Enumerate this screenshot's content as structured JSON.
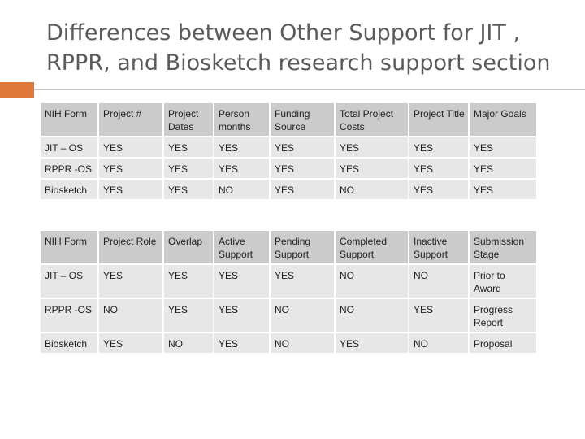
{
  "title_line1": "Differences between Other Support for JIT ,",
  "title_line2": "RPPR, and Biosketch research support section",
  "accent_color": "#e0783c",
  "table1": {
    "header": [
      "NIH Form",
      "Project #",
      "Project Dates",
      "Person months",
      "Funding Source",
      "Total Project Costs",
      "Project Title",
      "Major Goals"
    ],
    "rows": [
      [
        "JIT – OS",
        "YES",
        "YES",
        "YES",
        "YES",
        "YES",
        "YES",
        "YES"
      ],
      [
        "RPPR -OS",
        "YES",
        "YES",
        "YES",
        "YES",
        "YES",
        "YES",
        "YES"
      ],
      [
        "Biosketch",
        "YES",
        "YES",
        "NO",
        "YES",
        "NO",
        "YES",
        "YES"
      ]
    ]
  },
  "table2": {
    "header": [
      "NIH Form",
      "Project Role",
      "Overlap",
      "Active Support",
      "Pending Support",
      "Completed Support",
      "Inactive Support",
      "Submission Stage"
    ],
    "rows": [
      [
        "JIT – OS",
        "YES",
        "YES",
        "YES",
        "YES",
        "NO",
        "NO",
        "Prior to Award"
      ],
      [
        "RPPR -OS",
        "NO",
        "YES",
        "YES",
        "NO",
        "NO",
        "YES",
        "Progress Report"
      ],
      [
        "Biosketch",
        "YES",
        "NO",
        "YES",
        "NO",
        "YES",
        "NO",
        "Proposal"
      ]
    ]
  }
}
